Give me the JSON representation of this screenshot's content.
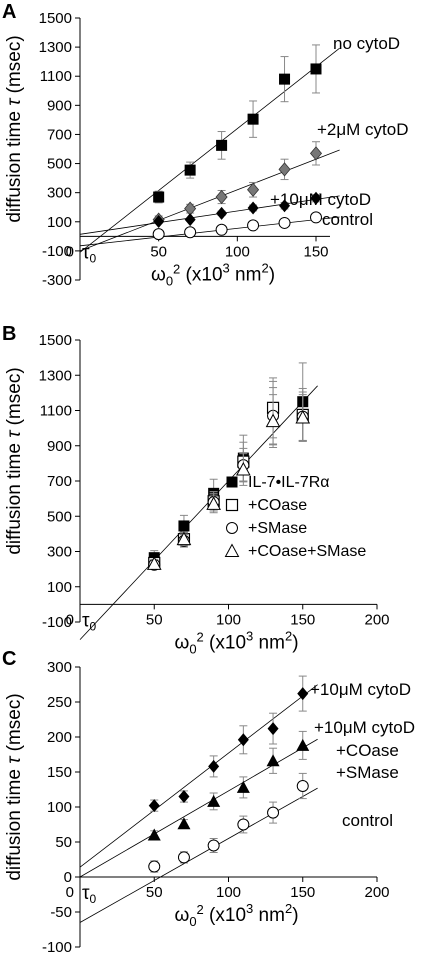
{
  "chart_data": [
    {
      "panel": "A",
      "type": "scatter",
      "xlabel": "ω0² (x10³ nm²)",
      "ylabel": "diffusion time τ (msec)",
      "xlim": [
        0,
        165
      ],
      "ylim": [
        -300,
        1500
      ],
      "x_ticks": [
        "50",
        "100",
        "150"
      ],
      "y_ticks": [
        "-300",
        "-100",
        "100",
        "300",
        "500",
        "700",
        "900",
        "1100",
        "1300",
        "1500"
      ],
      "origin_label": "0",
      "tau_label": "τ0",
      "series": [
        {
          "name": "no cytoD",
          "marker": "square-filled",
          "color": "#000000",
          "x": [
            50,
            70,
            90,
            110,
            130,
            150
          ],
          "y": [
            270,
            455,
            625,
            805,
            1080,
            1150
          ],
          "err": [
            40,
            55,
            95,
            125,
            155,
            165
          ],
          "fit": [
            -110,
            8.5
          ]
        },
        {
          "name": "+2μM cytoD",
          "marker": "diamond-gray",
          "color": "#7a7a7a",
          "x": [
            50,
            70,
            90,
            110,
            130,
            150
          ],
          "y": [
            115,
            190,
            270,
            320,
            460,
            570
          ],
          "err": [
            25,
            30,
            45,
            50,
            70,
            80
          ],
          "fit": [
            -100,
            4.2
          ]
        },
        {
          "name": "+10μM cytoD",
          "marker": "diamond-black",
          "color": "#000000",
          "x": [
            50,
            70,
            90,
            110,
            130,
            150
          ],
          "y": [
            102,
            115,
            158,
            195,
            210,
            262
          ],
          "err": [
            10,
            10,
            15,
            20,
            22,
            25
          ],
          "fit": [
            14,
            1.6
          ]
        },
        {
          "name": "control",
          "marker": "circle-open",
          "color": "#000000",
          "x": [
            50,
            70,
            90,
            110,
            130,
            150
          ],
          "y": [
            15,
            28,
            45,
            75,
            92,
            130
          ],
          "err": [
            10,
            10,
            12,
            15,
            18,
            20
          ],
          "fit": [
            -65,
            1.2
          ]
        }
      ]
    },
    {
      "panel": "B",
      "type": "scatter",
      "xlabel": "ω0² (x10³ nm²)",
      "ylabel": "diffusion time τ (msec)",
      "xlim": [
        0,
        200
      ],
      "ylim": [
        -100,
        1500
      ],
      "x_ticks": [
        "50",
        "100",
        "150",
        "200"
      ],
      "y_ticks": [
        "-100",
        "100",
        "300",
        "500",
        "700",
        "900",
        "1100",
        "1300",
        "1500"
      ],
      "origin_label": "0",
      "tau_label": "τ0",
      "fit": [
        -200,
        9
      ],
      "series": [
        {
          "name": "IL-7•IL-7Rα",
          "marker": "square-filled",
          "x": [
            50,
            70,
            90,
            110,
            130,
            150
          ],
          "y": [
            265,
            445,
            630,
            830,
            1085,
            1150
          ],
          "err": [
            40,
            60,
            80,
            130,
            180,
            220
          ]
        },
        {
          "name": "+COase",
          "marker": "square-open",
          "x": [
            50,
            70,
            90,
            110,
            130,
            150
          ],
          "y": [
            235,
            370,
            585,
            810,
            1115,
            1075
          ],
          "err": [
            30,
            40,
            55,
            110,
            170,
            150
          ]
        },
        {
          "name": "+SMase",
          "marker": "circle-open",
          "x": [
            50,
            70,
            90,
            110,
            130,
            150
          ],
          "y": [
            225,
            360,
            580,
            790,
            1070,
            1065
          ],
          "err": [
            25,
            35,
            50,
            95,
            160,
            140
          ]
        },
        {
          "name": "+COase+SMase",
          "marker": "triangle-open",
          "x": [
            50,
            70,
            90,
            110,
            130,
            150
          ],
          "y": [
            230,
            370,
            570,
            765,
            1040,
            1060
          ],
          "err": [
            25,
            35,
            50,
            90,
            150,
            130
          ]
        }
      ]
    },
    {
      "panel": "C",
      "type": "scatter",
      "xlabel": "ω0² (x10³ nm²)",
      "ylabel": "diffusion time τ (msec)",
      "xlim": [
        0,
        200
      ],
      "ylim": [
        -100,
        300
      ],
      "x_ticks": [
        "50",
        "100",
        "150",
        "200"
      ],
      "y_ticks": [
        "-100",
        "-50",
        "0",
        "50",
        "100",
        "150",
        "200",
        "250",
        "300"
      ],
      "origin_label": "0",
      "tau_label": "τ0",
      "series": [
        {
          "name": "+10μM cytoD",
          "marker": "diamond-black",
          "x": [
            50,
            70,
            90,
            110,
            130,
            150
          ],
          "y": [
            102,
            115,
            158,
            196,
            212,
            262
          ],
          "err": [
            8,
            8,
            15,
            20,
            22,
            25
          ],
          "fit": [
            14,
            1.63
          ]
        },
        {
          "name": "+10μM cytoD +COase +SMase",
          "marker": "triangle-filled",
          "x": [
            50,
            70,
            90,
            110,
            130,
            150
          ],
          "y": [
            60,
            76,
            108,
            128,
            166,
            188
          ],
          "err": [
            6,
            6,
            12,
            15,
            18,
            20
          ],
          "fit": [
            0,
            1.23
          ]
        },
        {
          "name": "control",
          "marker": "circle-open",
          "x": [
            50,
            70,
            90,
            110,
            130,
            150
          ],
          "y": [
            15,
            28,
            45,
            75,
            92,
            130
          ],
          "err": [
            8,
            8,
            10,
            12,
            15,
            18
          ],
          "fit": [
            -65,
            1.2
          ]
        }
      ],
      "annotations": [
        "+10μM cytoD",
        "+10μM cytoD",
        "+COase",
        "+SMase",
        "control"
      ]
    }
  ],
  "panel_letters": {
    "a": "A",
    "b": "B",
    "c": "C"
  },
  "annotations": {
    "a": {
      "no_cytod": "no cytoD",
      "cytod2": "+2μM cytoD",
      "cytod10": "+10μM cytoD",
      "control": "control"
    },
    "c": {
      "cytod10": "+10μM cytoD",
      "cytod10b": "+10μM cytoD",
      "coase": "+COase",
      "smase": "+SMase",
      "control": "control"
    }
  }
}
